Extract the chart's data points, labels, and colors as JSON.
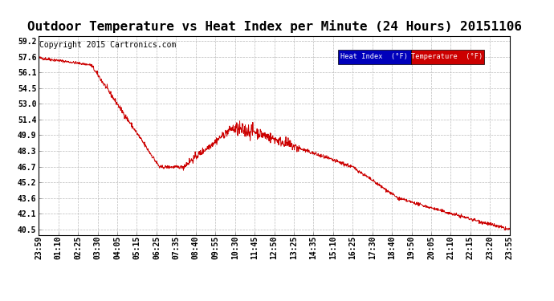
{
  "title": "Outdoor Temperature vs Heat Index per Minute (24 Hours) 20151106",
  "copyright": "Copyright 2015 Cartronics.com",
  "legend_entries": [
    {
      "label": "Heat Index  (°F)",
      "bg_color": "#0000bb",
      "text_color": "white"
    },
    {
      "label": "Temperature  (°F)",
      "bg_color": "#cc0000",
      "text_color": "white"
    }
  ],
  "yticks": [
    40.5,
    42.1,
    43.6,
    45.2,
    46.7,
    48.3,
    49.9,
    51.4,
    53.0,
    54.5,
    56.1,
    57.6,
    59.2
  ],
  "ylim": [
    40.0,
    59.65
  ],
  "xtick_labels": [
    "23:59",
    "01:10",
    "02:25",
    "03:30",
    "04:05",
    "05:15",
    "06:25",
    "07:35",
    "08:40",
    "09:55",
    "10:30",
    "11:45",
    "12:50",
    "13:25",
    "14:35",
    "15:10",
    "16:25",
    "17:30",
    "18:40",
    "19:50",
    "20:05",
    "21:10",
    "22:15",
    "23:20",
    "23:55"
  ],
  "background_color": "#ffffff",
  "grid_color": "#bbbbbb",
  "line_color": "#cc0000",
  "title_fontsize": 11.5,
  "tick_fontsize": 7,
  "copyright_fontsize": 7
}
